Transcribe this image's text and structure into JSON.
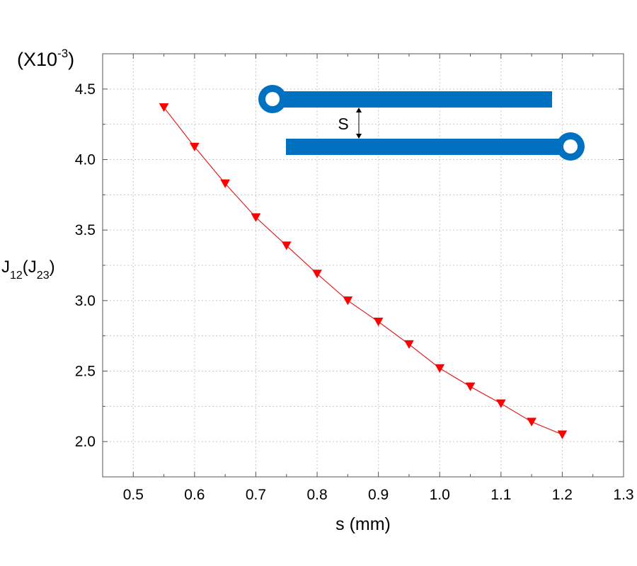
{
  "chart_data": {
    "type": "line",
    "title": "",
    "xlabel": "s (mm)",
    "ylabel": {
      "main": "J",
      "sub1": "12",
      "paren_open": "(J",
      "sub2": "23",
      "paren_close": ")"
    },
    "yscale": {
      "open": "(X10",
      "exponent": "-3",
      "close": ")"
    },
    "xlim": [
      0.45,
      1.3
    ],
    "ylim": [
      1.75,
      4.75
    ],
    "xticks": [
      0.5,
      0.6,
      0.7,
      0.8,
      0.9,
      1.0,
      1.1,
      1.2,
      1.3
    ],
    "xtick_labels": [
      "0.5",
      "0.6",
      "0.7",
      "0.8",
      "0.9",
      "1.0",
      "1.1",
      "1.2",
      "1.3"
    ],
    "yticks": [
      2.0,
      2.5,
      3.0,
      3.5,
      4.0,
      4.5
    ],
    "ytick_labels": [
      "2.0",
      "2.5",
      "3.0",
      "3.5",
      "4.0",
      "4.5"
    ],
    "grid": true,
    "series": [
      {
        "marker": "triangle-down",
        "color": "#ff0000",
        "line_color": "#e02020",
        "x": [
          0.55,
          0.6,
          0.65,
          0.7,
          0.75,
          0.8,
          0.85,
          0.9,
          0.95,
          1.0,
          1.05,
          1.1,
          1.15,
          1.2
        ],
        "y": [
          4.37,
          4.09,
          3.83,
          3.59,
          3.39,
          3.19,
          3.0,
          2.85,
          2.69,
          2.52,
          2.39,
          2.27,
          2.14,
          2.05
        ]
      }
    ],
    "inset": {
      "label": "S",
      "color": "#0070c0"
    }
  }
}
